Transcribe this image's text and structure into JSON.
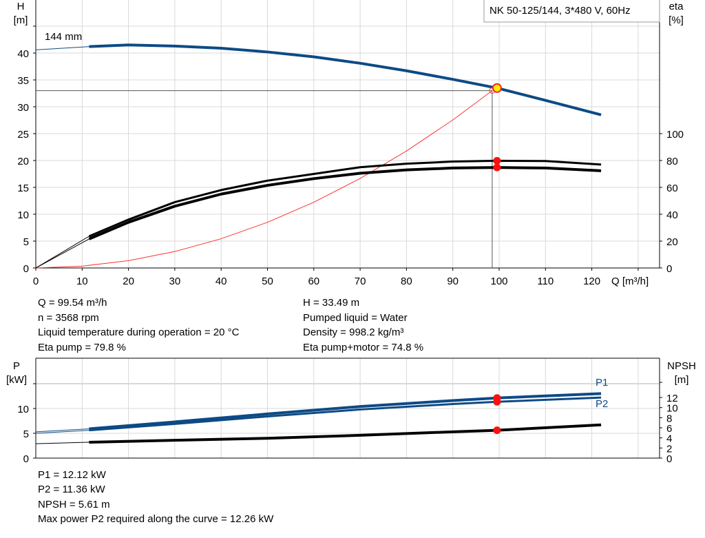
{
  "chart_data": [
    {
      "type": "line",
      "title_box": "NK 50-125/144, 3*480 V, 60Hz",
      "curve_label": "144 mm",
      "xlabel": "Q [m³/h]",
      "ylabel": [
        "H",
        "[m]"
      ],
      "y2label": [
        "eta",
        "[%]"
      ],
      "xlim": [
        0,
        135
      ],
      "ylim": [
        0,
        50
      ],
      "xticks": [
        0,
        10,
        20,
        30,
        40,
        50,
        60,
        70,
        80,
        90,
        100,
        110,
        120
      ],
      "yticks": [
        0,
        5,
        10,
        15,
        20,
        25,
        30,
        35,
        40
      ],
      "y2ticks": [
        0,
        20,
        40,
        60,
        80,
        100
      ],
      "grid": true,
      "series": [
        {
          "key": "H",
          "axis": "left",
          "color": "#0d4a85",
          "x": [
            0,
            11.5,
            20,
            30,
            40,
            50,
            60,
            70,
            80,
            90,
            99.54,
            110,
            122
          ],
          "y": [
            40.6,
            41.2,
            41.5,
            41.3,
            40.9,
            40.2,
            39.3,
            38.1,
            36.7,
            35.1,
            33.49,
            31.2,
            28.5
          ]
        },
        {
          "key": "eta_pump",
          "axis": "right",
          "color": "#000000",
          "x": [
            0,
            11.5,
            20,
            30,
            40,
            50,
            60,
            70,
            80,
            90,
            99.54,
            110,
            122
          ],
          "y": [
            0,
            23.6,
            36,
            49,
            58,
            65,
            70,
            75,
            77.6,
            79.2,
            79.8,
            79.6,
            77
          ]
        },
        {
          "key": "eta_pump_motor",
          "axis": "right",
          "color": "#000000",
          "x": [
            0,
            11.5,
            20,
            30,
            40,
            50,
            60,
            70,
            80,
            90,
            99.54,
            110,
            122
          ],
          "y": [
            0,
            21.6,
            34,
            46,
            55,
            61.5,
            66.5,
            70.5,
            73,
            74.4,
            74.8,
            74.4,
            72.4
          ]
        },
        {
          "key": "system",
          "axis": "left",
          "color": "#ff3030",
          "x": [
            0,
            10,
            20,
            30,
            40,
            50,
            60,
            70,
            80,
            90,
            98.5
          ],
          "y": [
            0,
            0.34,
            1.36,
            3.06,
            5.44,
            8.5,
            12.24,
            16.66,
            21.77,
            27.55,
            33
          ]
        }
      ],
      "duty_point": {
        "Q": 99.54,
        "H": 33.49,
        "eta_pump": 79.8,
        "eta_pump_motor": 74.8
      },
      "crosshair": {
        "Q": 98.5,
        "H": 33
      }
    },
    {
      "type": "line",
      "ylabel": [
        "P",
        "[kW]"
      ],
      "y2label": [
        "NPSH",
        "[m]"
      ],
      "xlim": [
        0,
        135
      ],
      "ylim": [
        0,
        20
      ],
      "yticks": [
        0,
        5,
        10
      ],
      "y2ticks": [
        0,
        2,
        4,
        6,
        8,
        10,
        12
      ],
      "grid": true,
      "series": [
        {
          "name": "P1",
          "axis": "left",
          "color": "#0d4a85",
          "x": [
            0,
            11.5,
            30,
            50,
            70,
            90,
            99.54,
            122
          ],
          "y": [
            5.3,
            5.9,
            7.3,
            8.9,
            10.4,
            11.6,
            12.12,
            13.0
          ]
        },
        {
          "name": "P2",
          "axis": "left",
          "color": "#0d4a85",
          "x": [
            0,
            11.5,
            30,
            50,
            70,
            90,
            99.54,
            122
          ],
          "y": [
            5.0,
            5.6,
            6.9,
            8.4,
            9.8,
            10.9,
            11.36,
            12.2
          ]
        },
        {
          "key": "NPSH",
          "axis": "left",
          "color": "#000000",
          "x": [
            0,
            11.5,
            30,
            50,
            70,
            90,
            99.54,
            122
          ],
          "y": [
            2.9,
            3.2,
            3.6,
            4.0,
            4.6,
            5.3,
            5.61,
            6.7
          ]
        }
      ],
      "duty_point": {
        "Q": 99.54,
        "P1": 12.12,
        "P2": 11.36,
        "NPSH": 5.61
      }
    }
  ],
  "info_top": {
    "left": [
      "Q = 99.54 m³/h",
      "n = 3568 rpm",
      "Liquid temperature during operation = 20 °C",
      "Eta pump = 79.8 %"
    ],
    "right": [
      "H = 33.49 m",
      "Pumped liquid = Water",
      "Density = 998.2 kg/m³",
      "Eta pump+motor = 74.8 %"
    ]
  },
  "info_bottom": [
    "P1 = 12.12 kW",
    "P2 = 11.36 kW",
    "NPSH = 5.61 m",
    "Max power P2 required along the curve = 12.26 kW"
  ]
}
